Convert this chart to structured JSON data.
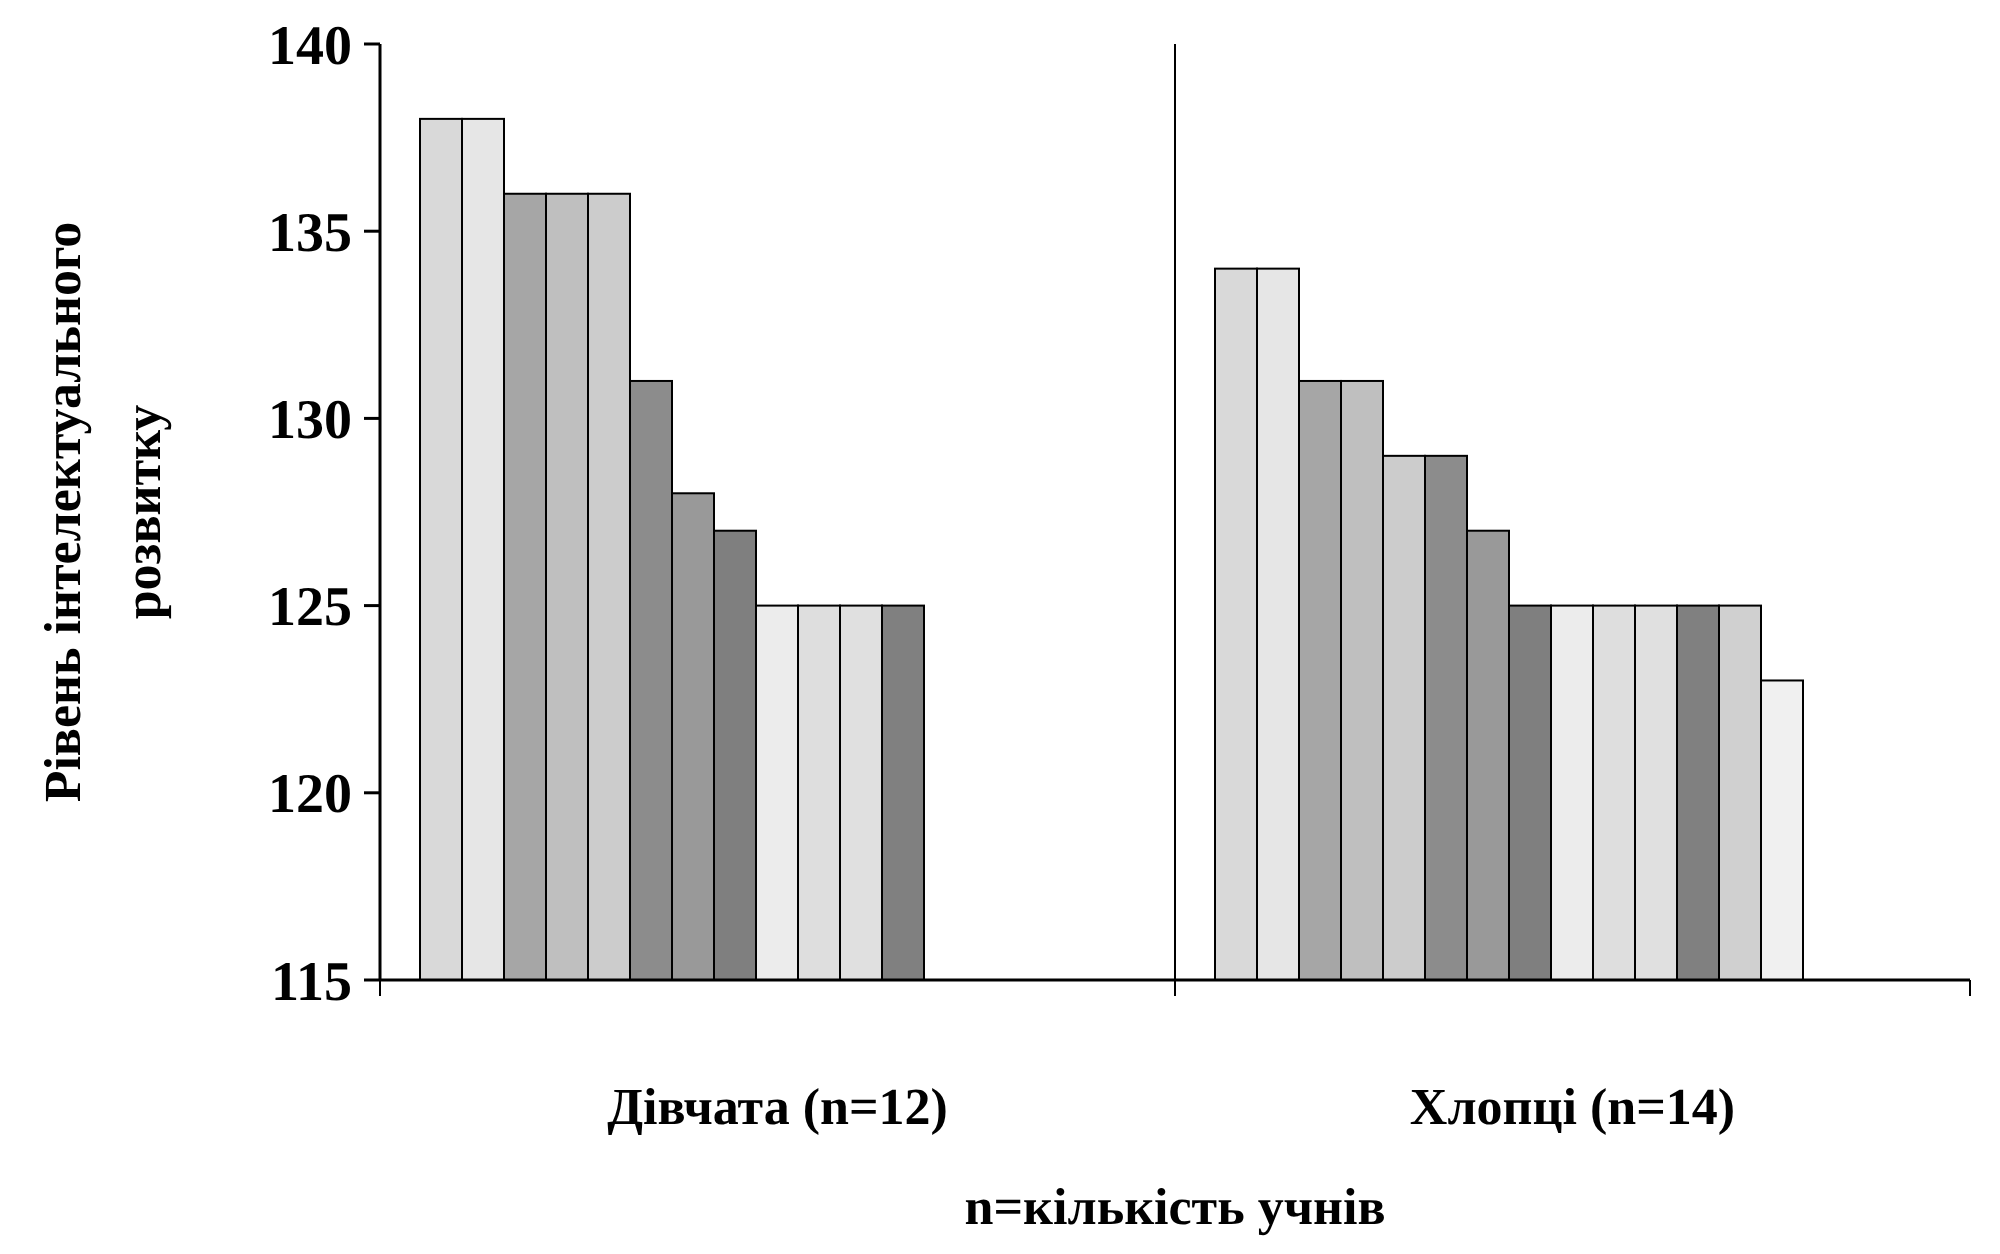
{
  "chart_data": {
    "type": "bar",
    "xlabel": "n=кількість учнів",
    "ylabel": "Рівень інтелектуального розвитку",
    "categories": [
      "Дівчата (n=12)",
      "Хлопці (n=14)"
    ],
    "series": [
      {
        "color": "#d9d9d9",
        "values": [
          138,
          134
        ]
      },
      {
        "color": "#e6e6e6",
        "values": [
          138,
          134
        ]
      },
      {
        "color": "#a6a6a6",
        "values": [
          136,
          131
        ]
      },
      {
        "color": "#bfbfbf",
        "values": [
          136,
          131
        ]
      },
      {
        "color": "#cccccc",
        "values": [
          136,
          129
        ]
      },
      {
        "color": "#8c8c8c",
        "values": [
          131,
          129
        ]
      },
      {
        "color": "#999999",
        "values": [
          128,
          127
        ]
      },
      {
        "color": "#7f7f7f",
        "values": [
          127,
          125
        ]
      },
      {
        "color": "#ececec",
        "values": [
          125,
          125
        ]
      },
      {
        "color": "#dedede",
        "values": [
          125,
          125
        ]
      },
      {
        "color": "#e0e0e0",
        "values": [
          125,
          125
        ]
      },
      {
        "color": "#808080",
        "values": [
          125,
          125
        ]
      },
      {
        "color": "#d0d0d0",
        "values": [
          null,
          125
        ]
      },
      {
        "color": "#f0f0f0",
        "values": [
          null,
          123
        ]
      }
    ],
    "ylim": [
      115,
      140
    ],
    "yticks": [
      115,
      120,
      125,
      130,
      135,
      140
    ],
    "grid": false
  }
}
